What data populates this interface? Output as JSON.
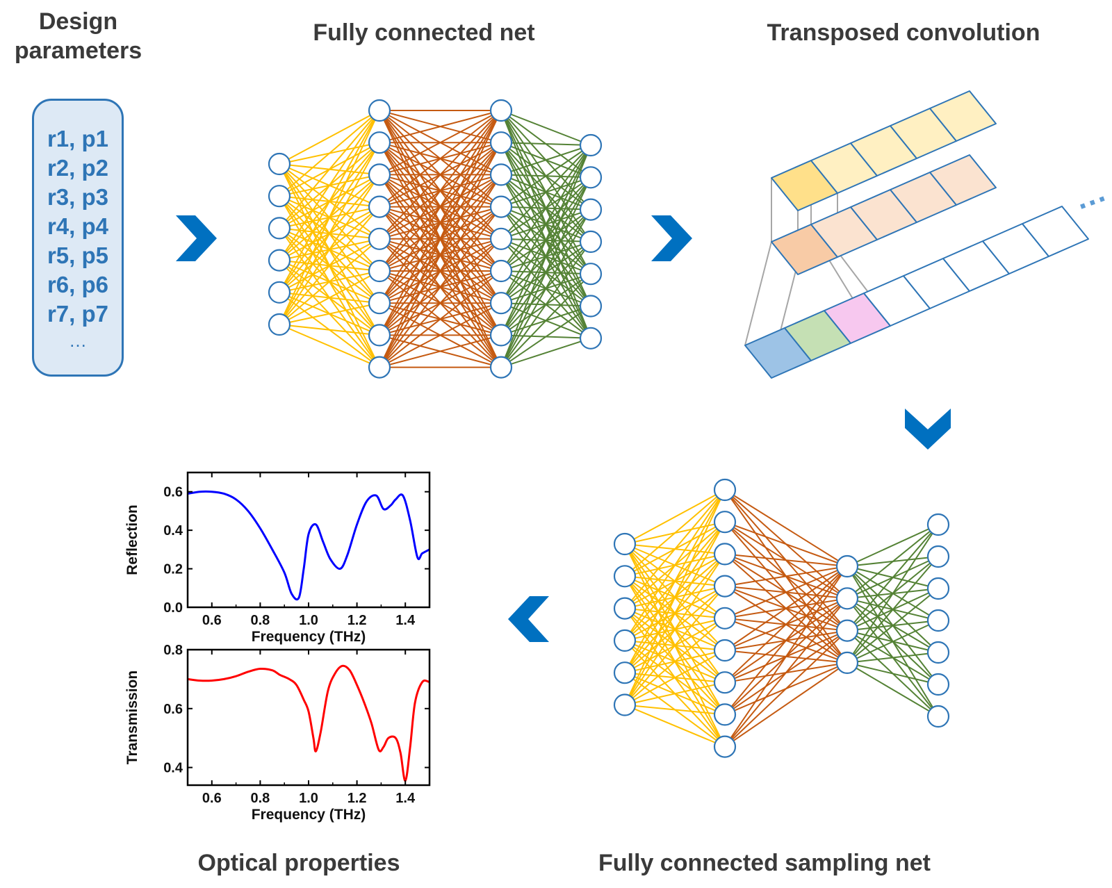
{
  "titles": {
    "design_line1": "Design",
    "design_line2": "parameters",
    "fully_connected_net": "Fully connected net",
    "transposed_convolution": "Transposed convolution",
    "optical_properties": "Optical properties",
    "fully_connected_sampling_net": "Fully connected sampling net"
  },
  "params": [
    "r1, p1",
    "r2, p2",
    "r3, p3",
    "r4, p4",
    "r5, p5",
    "r6, p6",
    "r7, p7"
  ],
  "params_ellipsis": "…",
  "conv_ellipsis": "···",
  "colors": {
    "accent_blue": "#0070c0",
    "node_stroke": "#2e75b6",
    "yellow_edges": "#ffc000",
    "orange_edges": "#c55a11",
    "green_edges": "#548235",
    "reflection_line": "#0000ff",
    "transmission_line": "#ff0000"
  },
  "networks": {
    "fully_connected_net": {
      "layer_sizes": [
        6,
        9,
        9,
        7
      ]
    },
    "fully_connected_sampling_net": {
      "layer_sizes": [
        6,
        9,
        4,
        7
      ]
    }
  },
  "chart_data": [
    {
      "type": "line",
      "xlabel": "Frequency (THz)",
      "ylabel": "Reflection",
      "xlim": [
        0.5,
        1.5
      ],
      "ylim": [
        0.0,
        0.7
      ],
      "xticks": [
        "0.6",
        "0.8",
        "1.0",
        "1.2",
        "1.4"
      ],
      "yticks": [
        "0.0",
        "0.2",
        "0.4",
        "0.6"
      ],
      "series": [
        {
          "color": "#0000ff",
          "x": [
            0.5,
            0.55,
            0.6,
            0.65,
            0.7,
            0.75,
            0.8,
            0.85,
            0.9,
            0.93,
            0.96,
            0.98,
            1.0,
            1.03,
            1.06,
            1.09,
            1.13,
            1.16,
            1.2,
            1.24,
            1.28,
            1.31,
            1.34,
            1.36,
            1.39,
            1.42,
            1.45,
            1.47,
            1.5
          ],
          "y": [
            0.59,
            0.6,
            0.6,
            0.59,
            0.56,
            0.5,
            0.41,
            0.3,
            0.18,
            0.07,
            0.05,
            0.2,
            0.38,
            0.43,
            0.34,
            0.25,
            0.2,
            0.27,
            0.43,
            0.55,
            0.58,
            0.51,
            0.53,
            0.56,
            0.58,
            0.45,
            0.26,
            0.28,
            0.3
          ]
        }
      ]
    },
    {
      "type": "line",
      "xlabel": "Frequency (THz)",
      "ylabel": "Transmission",
      "xlim": [
        0.5,
        1.5
      ],
      "ylim": [
        0.34,
        0.8
      ],
      "xticks": [
        "0.6",
        "0.8",
        "1.0",
        "1.2",
        "1.4"
      ],
      "yticks": [
        "0.4",
        "0.6",
        "0.8"
      ],
      "series": [
        {
          "color": "#ff0000",
          "x": [
            0.5,
            0.55,
            0.6,
            0.65,
            0.7,
            0.75,
            0.8,
            0.85,
            0.88,
            0.92,
            0.95,
            0.98,
            1.0,
            1.02,
            1.03,
            1.05,
            1.08,
            1.11,
            1.14,
            1.17,
            1.2,
            1.23,
            1.26,
            1.29,
            1.31,
            1.33,
            1.36,
            1.38,
            1.4,
            1.42,
            1.44,
            1.47,
            1.5
          ],
          "y": [
            0.7,
            0.695,
            0.695,
            0.7,
            0.71,
            0.725,
            0.735,
            0.73,
            0.715,
            0.7,
            0.68,
            0.63,
            0.59,
            0.5,
            0.455,
            0.52,
            0.66,
            0.72,
            0.745,
            0.73,
            0.68,
            0.62,
            0.55,
            0.46,
            0.47,
            0.5,
            0.5,
            0.45,
            0.355,
            0.47,
            0.62,
            0.69,
            0.69
          ]
        }
      ]
    }
  ]
}
